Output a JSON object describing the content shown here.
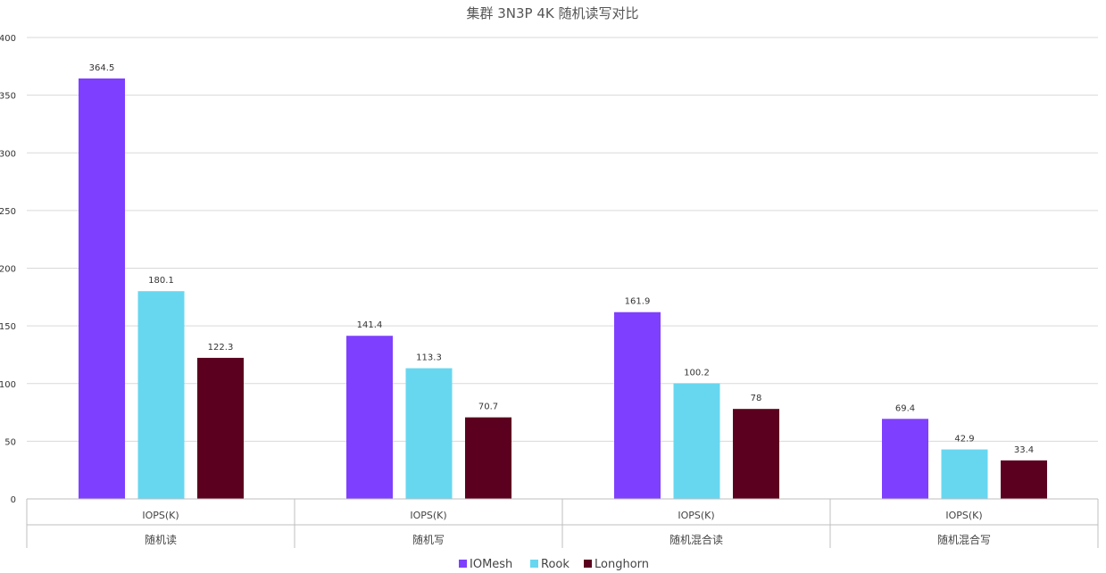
{
  "chart_data": {
    "type": "bar",
    "title": "集群 3N3P 4K 随机读写对比",
    "group_label": "IOPS(K)",
    "categories": [
      "随机读",
      "随机写",
      "随机混合读",
      "随机混合写"
    ],
    "series": [
      {
        "name": "IOMesh",
        "color": "#7f3fff",
        "values": [
          364.5,
          141.4,
          161.9,
          69.4
        ],
        "labels": [
          "364.5",
          "141.4",
          "161.9",
          "69.4"
        ]
      },
      {
        "name": "Rook",
        "color": "#67d7f0",
        "values": [
          180.1,
          113.3,
          100.2,
          42.9
        ],
        "labels": [
          "180.1",
          "113.3",
          "100.2",
          "42.9"
        ]
      },
      {
        "name": "Longhorn",
        "color": "#5c0020",
        "values": [
          122.3,
          70.7,
          78,
          33.4
        ],
        "labels": [
          "122.3",
          "70.7",
          "78",
          "33.4"
        ]
      }
    ],
    "ylim": [
      0,
      400
    ],
    "yticks": [
      "0",
      "50",
      "100",
      "150",
      "200",
      "250",
      "300",
      "350",
      "400"
    ],
    "grid": true,
    "legend_position": "bottom"
  }
}
